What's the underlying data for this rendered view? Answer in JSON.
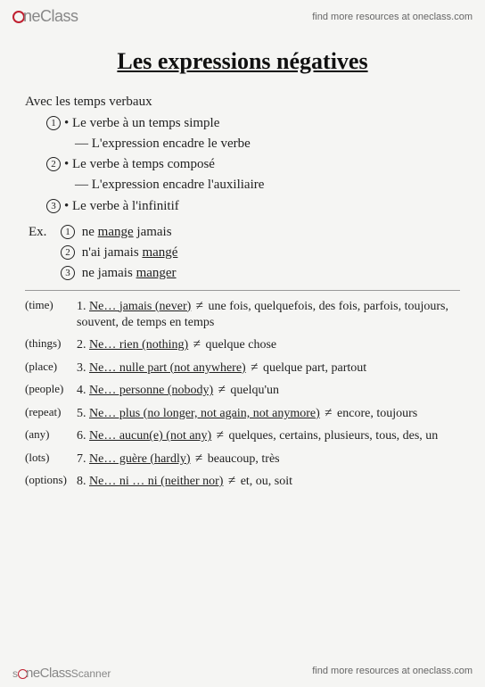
{
  "header": {
    "logo_text": "neClass",
    "tagline": "find more resources at oneclass.com"
  },
  "title": "Les expressions négatives",
  "intro": "Avec les temps verbaux",
  "rules": [
    {
      "n": "1",
      "text": "Le verbe à un temps simple",
      "sub": "— L'expression encadre le verbe"
    },
    {
      "n": "2",
      "text": "Le verbe à temps composé",
      "sub": "— L'expression encadre l'auxiliaire"
    },
    {
      "n": "3",
      "text": "Le verbe à l'infinitif",
      "sub": ""
    }
  ],
  "ex_label": "Ex.",
  "examples": [
    {
      "n": "1",
      "pre": "ne ",
      "u": "mange",
      "post": " jamais"
    },
    {
      "n": "2",
      "pre": "n'ai jamais ",
      "u": "mangé",
      "post": ""
    },
    {
      "n": "3",
      "pre": "ne jamais ",
      "u": "manger",
      "post": ""
    }
  ],
  "list": [
    {
      "cat": "(time)",
      "n": "1.",
      "expr": "Ne… jamais (never)",
      "opp": "une fois, quelquefois, des fois, parfois, toujours, souvent, de temps en temps"
    },
    {
      "cat": "(things)",
      "n": "2.",
      "expr": "Ne… rien (nothing)",
      "opp": "quelque chose"
    },
    {
      "cat": "(place)",
      "n": "3.",
      "expr": "Ne… nulle part (not anywhere)",
      "opp": "quelque part, partout"
    },
    {
      "cat": "(people)",
      "n": "4.",
      "expr": "Ne… personne (nobody)",
      "opp": "quelqu'un"
    },
    {
      "cat": "(repeat)",
      "n": "5.",
      "expr": "Ne… plus (no longer, not again, not anymore)",
      "opp": "encore, toujours"
    },
    {
      "cat": "(any)",
      "n": "6.",
      "expr": "Ne… aucun(e) (not any)",
      "opp": "quelques, certains, plusieurs, tous, des, un"
    },
    {
      "cat": "(lots)",
      "n": "7.",
      "expr": "Ne… guère (hardly)",
      "opp": "beaucoup, très"
    },
    {
      "cat": "(options)",
      "n": "8.",
      "expr": "Ne… ni … ni (neither nor)",
      "opp": "et, ou, soit"
    }
  ],
  "footer": {
    "logo_text": "neClass",
    "scanner": "Scanner",
    "tagline": "find more resources at oneclass.com"
  }
}
